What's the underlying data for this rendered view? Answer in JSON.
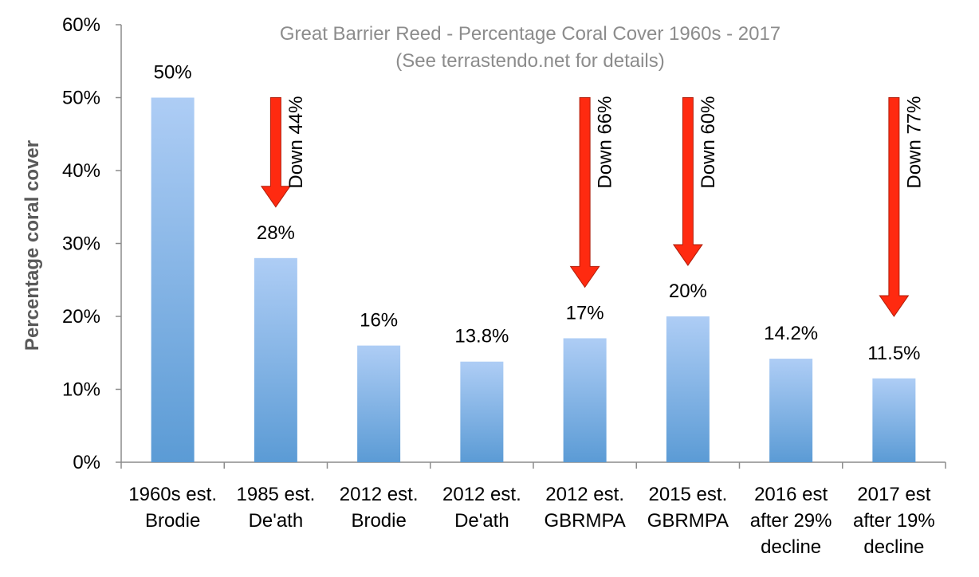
{
  "chart_data": {
    "type": "bar",
    "title": "Great Barrier Reed - Percentage Coral Cover 1960s - 2017",
    "subtitle": "(See terrastendo.net for details)",
    "xlabel": "",
    "ylabel": "Percentage coral cover",
    "ylim": [
      0,
      60
    ],
    "yticks": [
      "0%",
      "10%",
      "20%",
      "30%",
      "40%",
      "50%",
      "60%"
    ],
    "grid": false,
    "bar_color_top": "#aecdf5",
    "bar_color_bottom": "#5b9bd5",
    "arrow_color": "#ff2a10",
    "categories": [
      [
        "1960s est.",
        "Brodie"
      ],
      [
        "1985 est.",
        "De'ath"
      ],
      [
        "2012 est.",
        "Brodie"
      ],
      [
        "2012 est.",
        "De'ath"
      ],
      [
        "2012 est.",
        "GBRMPA"
      ],
      [
        "2015 est.",
        "GBRMPA"
      ],
      [
        "2016 est",
        "after 29%",
        "decline"
      ],
      [
        "2017 est",
        "after 19%",
        "decline"
      ]
    ],
    "values": [
      50,
      28,
      16,
      13.8,
      17,
      20,
      14.2,
      11.5
    ],
    "data_labels": [
      "50%",
      "28%",
      "16%",
      "13.8%",
      "17%",
      "20%",
      "14.2%",
      "11.5%"
    ],
    "annotations": [
      {
        "category_index": 1,
        "text": "Down 44%",
        "from": 50,
        "to": 35
      },
      {
        "category_index": 4,
        "text": "Down 66%",
        "from": 50,
        "to": 24
      },
      {
        "category_index": 5,
        "text": "Down 60%",
        "from": 50,
        "to": 27
      },
      {
        "category_index": 7,
        "text": "Down 77%",
        "from": 50,
        "to": 20
      }
    ]
  }
}
